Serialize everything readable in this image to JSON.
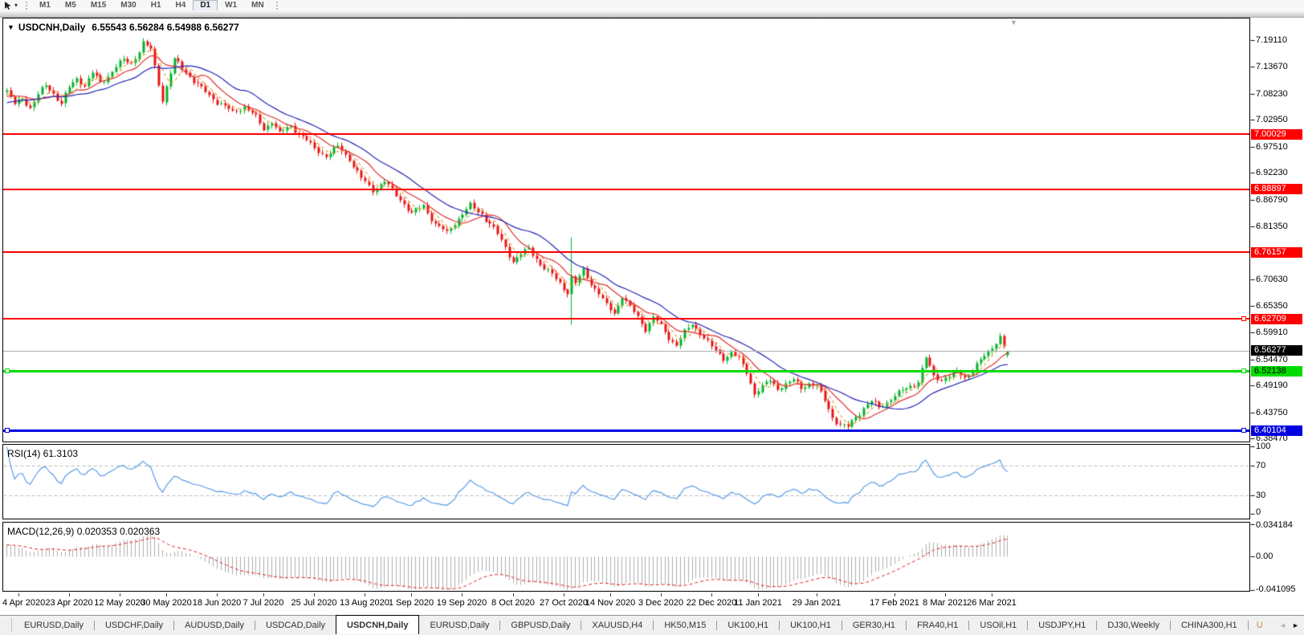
{
  "icons": {
    "collapse": "▼",
    "dropdown": "▾",
    "shift_marker": "▼",
    "tab_scroll_left": "◄",
    "tab_scroll_right": "►"
  },
  "toolbar": {
    "timeframes": [
      "M1",
      "M5",
      "M15",
      "M30",
      "H1",
      "H4",
      "D1",
      "W1",
      "MN"
    ],
    "active_timeframe": "D1"
  },
  "chart": {
    "title": "USDCNH,Daily",
    "ohlc": "6.55543 6.56284 6.54988 6.56277"
  },
  "price_axis": {
    "ticks": [
      "7.19110",
      "7.13670",
      "7.08230",
      "7.02950",
      "6.97510",
      "6.92230",
      "6.86790",
      "6.81350",
      "6.70630",
      "6.65350",
      "6.59910",
      "6.54470",
      "6.49190",
      "6.43750",
      "6.38470"
    ],
    "current_price": "6.56277"
  },
  "rsi_panel": {
    "label": "RSI(14) 61.3103",
    "ticks": [
      {
        "v": 100,
        "t": "100"
      },
      {
        "v": 70,
        "t": "70"
      },
      {
        "v": 30,
        "t": "30"
      },
      {
        "v": 0,
        "t": "0"
      }
    ]
  },
  "macd_panel": {
    "label": "MACD(12,26,9) 0.020353 0.020363",
    "ticks": [
      {
        "v": 0.034184,
        "t": "0.034184"
      },
      {
        "v": 0,
        "t": "0.00"
      },
      {
        "v": -0.041095,
        "t": "-0.041095"
      }
    ]
  },
  "tabs": {
    "items": [
      "EURUSD,Daily",
      "USDCHF,Daily",
      "AUDUSD,Daily",
      "USDCAD,Daily",
      "USDCNH,Daily",
      "EURUSD,Daily",
      "GBPUSD,Daily",
      "XAUUSD,H4",
      "HK50,M15",
      "UK100,H1",
      "UK100,H1",
      "GER30,H1",
      "FRA40,H1",
      "USOil,H1",
      "USDJPY,H1",
      "DJ30,Weekly",
      "CHINA300,H1"
    ],
    "active_index": 4,
    "partial_item": "U"
  },
  "chart_data": {
    "type": "candlestick",
    "symbol": "USDCNH",
    "timeframe": "Daily",
    "title": "USDCNH,Daily 6.55543 6.56284 6.54988 6.56277",
    "last_ohlc": {
      "open": 6.55543,
      "high": 6.56284,
      "low": 6.54988,
      "close": 6.56277
    },
    "bars": 258,
    "price_range": [
      6.3847,
      7.1911
    ],
    "colors": {
      "up": "#00b428",
      "down": "#e81414",
      "ma_fast": "#e6a23c",
      "ma_mid": "#e03030",
      "ma_slow": "#2424b4",
      "rsi": "#4d94e8",
      "macd_hist": "#acacac",
      "macd_signal": "#e02020",
      "current_line": "#b0b0b0"
    },
    "moving_averages": [
      {
        "period": 5,
        "color": "#e6a23c",
        "style": "dashed"
      },
      {
        "period": 10,
        "color": "#e03030",
        "style": "solid"
      },
      {
        "period": 21,
        "color": "#2424b4",
        "style": "solid"
      }
    ],
    "horizontal_levels": [
      {
        "price": 7.00029,
        "color": "#ff0000",
        "thickness": 2,
        "label_fg": "#fff",
        "handles": []
      },
      {
        "price": 6.88897,
        "color": "#ff0000",
        "thickness": 2,
        "label_fg": "#fff",
        "handles": []
      },
      {
        "price": 6.76157,
        "color": "#ff0000",
        "thickness": 2,
        "label_fg": "#fff",
        "handles": []
      },
      {
        "price": 6.62709,
        "color": "#ff0000",
        "thickness": 2,
        "label_fg": "#fff",
        "handles": [
          "right"
        ]
      },
      {
        "price": 6.52138,
        "color": "#00dc00",
        "thickness": 3,
        "label_fg": "#000",
        "handles": [
          "left",
          "right"
        ]
      },
      {
        "price": 6.40104,
        "color": "#0000e0",
        "thickness": 3,
        "label_fg": "#fff",
        "handles": [
          "left",
          "right"
        ]
      }
    ],
    "rsi": {
      "period": 14,
      "value": 61.3103,
      "levels": [
        70,
        30
      ],
      "range": [
        0,
        100
      ]
    },
    "macd": {
      "fast": 12,
      "slow": 26,
      "signal": 9,
      "values": [
        0.020353,
        0.020363
      ],
      "axis_max": 0.034184,
      "axis_min": -0.041095
    },
    "x_dates": [
      "4 Apr 2020",
      "23 Apr 2020",
      "12 May 2020",
      "30 May 2020",
      "18 Jun 2020",
      "7 Jul 2020",
      "25 Jul 2020",
      "13 Aug 2020",
      "1 Sep 2020",
      "19 Sep 2020",
      "8 Oct 2020",
      "27 Oct 2020",
      "14 Nov 2020",
      "3 Dec 2020",
      "22 Dec 2020",
      "11 Jan 2021",
      "29 Jan 2021",
      "17 Feb 2021",
      "8 Mar 2021",
      "26 Mar 2021"
    ],
    "x_tick_bars": [
      3,
      16,
      29,
      41,
      54,
      66,
      79,
      92,
      104,
      117,
      130,
      143,
      155,
      168,
      181,
      193,
      208,
      228,
      241,
      253
    ],
    "spike": {
      "bar": 145,
      "high": 6.792,
      "low": 6.615
    },
    "close_anchors": [
      [
        0,
        7.088
      ],
      [
        2,
        7.06
      ],
      [
        4,
        7.075
      ],
      [
        6,
        7.055
      ],
      [
        8,
        7.08
      ],
      [
        10,
        7.1
      ],
      [
        12,
        7.085
      ],
      [
        14,
        7.062
      ],
      [
        16,
        7.095
      ],
      [
        18,
        7.115
      ],
      [
        20,
        7.1
      ],
      [
        22,
        7.125
      ],
      [
        24,
        7.105
      ],
      [
        26,
        7.12
      ],
      [
        28,
        7.138
      ],
      [
        30,
        7.15
      ],
      [
        32,
        7.145
      ],
      [
        34,
        7.17
      ],
      [
        35,
        7.185
      ],
      [
        37,
        7.172
      ],
      [
        40,
        7.07
      ],
      [
        43,
        7.15
      ],
      [
        46,
        7.128
      ],
      [
        49,
        7.1
      ],
      [
        52,
        7.08
      ],
      [
        55,
        7.062
      ],
      [
        58,
        7.045
      ],
      [
        61,
        7.058
      ],
      [
        64,
        7.035
      ],
      [
        66,
        7.012
      ],
      [
        68,
        7.028
      ],
      [
        70,
        7.002
      ],
      [
        73,
        7.018
      ],
      [
        76,
        6.995
      ],
      [
        79,
        6.972
      ],
      [
        82,
        6.958
      ],
      [
        85,
        6.975
      ],
      [
        88,
        6.952
      ],
      [
        91,
        6.91
      ],
      [
        94,
        6.888
      ],
      [
        97,
        6.905
      ],
      [
        100,
        6.878
      ],
      [
        102,
        6.862
      ],
      [
        104,
        6.84
      ],
      [
        107,
        6.856
      ],
      [
        110,
        6.82
      ],
      [
        113,
        6.8
      ],
      [
        116,
        6.832
      ],
      [
        119,
        6.856
      ],
      [
        122,
        6.84
      ],
      [
        125,
        6.81
      ],
      [
        128,
        6.772
      ],
      [
        130,
        6.745
      ],
      [
        132,
        6.758
      ],
      [
        134,
        6.768
      ],
      [
        136,
        6.75
      ],
      [
        138,
        6.73
      ],
      [
        140,
        6.716
      ],
      [
        142,
        6.7
      ],
      [
        144,
        6.682
      ],
      [
        145,
        6.71
      ],
      [
        146,
        6.698
      ],
      [
        148,
        6.725
      ],
      [
        150,
        6.7
      ],
      [
        152,
        6.678
      ],
      [
        154,
        6.654
      ],
      [
        156,
        6.64
      ],
      [
        158,
        6.674
      ],
      [
        160,
        6.65
      ],
      [
        162,
        6.63
      ],
      [
        164,
        6.608
      ],
      [
        166,
        6.63
      ],
      [
        168,
        6.612
      ],
      [
        170,
        6.59
      ],
      [
        172,
        6.576
      ],
      [
        174,
        6.6
      ],
      [
        176,
        6.616
      ],
      [
        178,
        6.6
      ],
      [
        180,
        6.58
      ],
      [
        182,
        6.562
      ],
      [
        184,
        6.548
      ],
      [
        186,
        6.56
      ],
      [
        188,
        6.545
      ],
      [
        190,
        6.52
      ],
      [
        192,
        6.478
      ],
      [
        194,
        6.49
      ],
      [
        196,
        6.502
      ],
      [
        198,
        6.488
      ],
      [
        200,
        6.496
      ],
      [
        202,
        6.502
      ],
      [
        204,
        6.488
      ],
      [
        206,
        6.498
      ],
      [
        208,
        6.49
      ],
      [
        210,
        6.462
      ],
      [
        212,
        6.43
      ],
      [
        214,
        6.412
      ],
      [
        216,
        6.408
      ],
      [
        218,
        6.43
      ],
      [
        220,
        6.448
      ],
      [
        222,
        6.46
      ],
      [
        224,
        6.448
      ],
      [
        226,
        6.46
      ],
      [
        228,
        6.472
      ],
      [
        230,
        6.482
      ],
      [
        232,
        6.492
      ],
      [
        234,
        6.502
      ],
      [
        236,
        6.548
      ],
      [
        238,
        6.512
      ],
      [
        240,
        6.505
      ],
      [
        242,
        6.512
      ],
      [
        244,
        6.518
      ],
      [
        246,
        6.51
      ],
      [
        248,
        6.525
      ],
      [
        250,
        6.542
      ],
      [
        252,
        6.56
      ],
      [
        254,
        6.582
      ],
      [
        255,
        6.592
      ],
      [
        256,
        6.571
      ],
      [
        257,
        6.5628
      ]
    ]
  }
}
